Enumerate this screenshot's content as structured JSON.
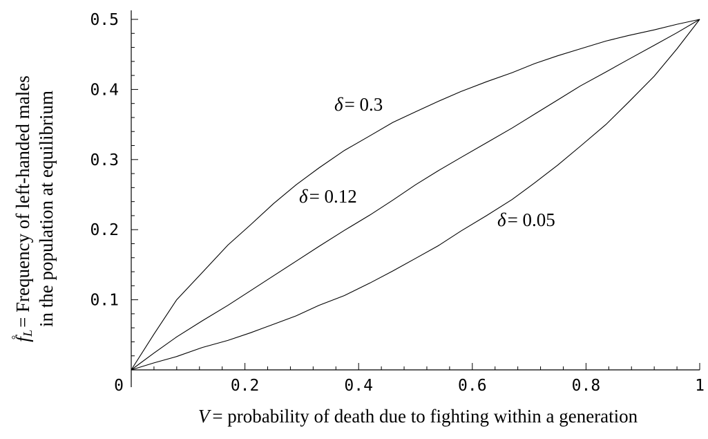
{
  "chart_data": {
    "type": "line",
    "xlabel_var": "V",
    "xlabel_text": "= probability of death due to fighting within a generation",
    "ylabel_line1_var": "f",
    "ylabel_line1_sub": "L",
    "ylabel_line1_sup": "°",
    "ylabel_line1_text": "= Frequency of left-handed males",
    "ylabel_line2": "in the population at equilibrium",
    "xlim": [
      0,
      1
    ],
    "ylim": [
      0,
      0.5
    ],
    "xticks": [
      0.2,
      0.4,
      0.6,
      0.8,
      1
    ],
    "xtick_labels": [
      "0.2",
      "0.4",
      "0.6",
      "0.8",
      "1"
    ],
    "yticks": [
      0.1,
      0.2,
      0.3,
      0.4,
      0.5
    ],
    "ytick_labels": [
      "0.1",
      "0.2",
      "0.3",
      "0.4",
      "0.5"
    ],
    "origin_label": "0",
    "grid": false,
    "series": [
      {
        "label_symbol": "δ",
        "label_value": "= 0.3",
        "x": [
          0,
          0.04,
          0.08,
          0.125,
          0.17,
          0.21,
          0.25,
          0.29,
          0.33,
          0.375,
          0.42,
          0.46,
          0.5,
          0.54,
          0.58,
          0.625,
          0.67,
          0.71,
          0.75,
          0.79,
          0.835,
          0.875,
          0.92,
          0.96,
          1
        ],
        "y": [
          0,
          0.051,
          0.1,
          0.139,
          0.178,
          0.207,
          0.237,
          0.264,
          0.288,
          0.313,
          0.334,
          0.353,
          0.368,
          0.383,
          0.397,
          0.411,
          0.424,
          0.437,
          0.448,
          0.458,
          0.469,
          0.477,
          0.485,
          0.493,
          0.5
        ]
      },
      {
        "label_symbol": "δ",
        "label_value": "= 0.12",
        "x": [
          0,
          0.04,
          0.08,
          0.125,
          0.17,
          0.21,
          0.25,
          0.29,
          0.33,
          0.375,
          0.42,
          0.46,
          0.5,
          0.54,
          0.58,
          0.625,
          0.67,
          0.71,
          0.75,
          0.79,
          0.835,
          0.875,
          0.92,
          0.96,
          1
        ],
        "y": [
          0,
          0.024,
          0.047,
          0.07,
          0.092,
          0.113,
          0.134,
          0.155,
          0.176,
          0.199,
          0.221,
          0.242,
          0.264,
          0.284,
          0.303,
          0.324,
          0.345,
          0.365,
          0.385,
          0.405,
          0.425,
          0.443,
          0.463,
          0.481,
          0.5
        ]
      },
      {
        "label_symbol": "δ",
        "label_value": "= 0.05",
        "x": [
          0,
          0.04,
          0.08,
          0.125,
          0.17,
          0.21,
          0.25,
          0.29,
          0.33,
          0.375,
          0.42,
          0.46,
          0.5,
          0.54,
          0.58,
          0.625,
          0.67,
          0.71,
          0.75,
          0.79,
          0.835,
          0.875,
          0.92,
          0.96,
          1
        ],
        "y": [
          0,
          0.01,
          0.019,
          0.032,
          0.042,
          0.053,
          0.065,
          0.077,
          0.092,
          0.106,
          0.124,
          0.141,
          0.159,
          0.177,
          0.198,
          0.22,
          0.243,
          0.267,
          0.292,
          0.319,
          0.35,
          0.382,
          0.419,
          0.458,
          0.5
        ]
      }
    ]
  }
}
